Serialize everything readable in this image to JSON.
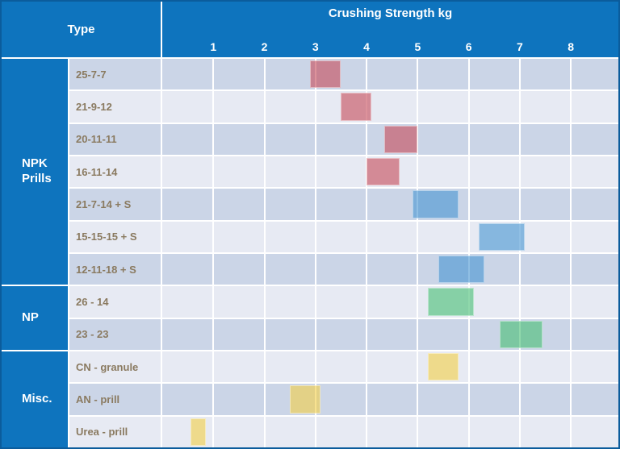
{
  "header": {
    "type_label": "Type",
    "title": "Crushing Strength kg",
    "ticks": [
      "1",
      "2",
      "3",
      "4",
      "5",
      "6",
      "7",
      "8"
    ]
  },
  "axis": {
    "x_max": 8.93
  },
  "colors": {
    "header_bg": "#0e74be",
    "border": "#0b5c9c",
    "row_dark": "#cbd5e7",
    "row_light": "#e7eaf3",
    "label_text": "#8a7a60",
    "gridline": "#ffffff",
    "bar_red": "rgba(198,74,88,0.6)",
    "bar_blue": "rgba(70,148,210,0.6)",
    "bar_green": "rgba(70,190,115,0.6)",
    "bar_yellow": "rgba(243,206,70,0.6)"
  },
  "groups": [
    {
      "label": "NPK Prills",
      "rows": 7
    },
    {
      "label": "NP",
      "rows": 2
    },
    {
      "label": "Misc.",
      "rows": 3
    }
  ],
  "rows": [
    {
      "label": "25-7-7",
      "start": 2.9,
      "end": 3.5,
      "color": "red"
    },
    {
      "label": "21-9-12",
      "start": 3.5,
      "end": 4.1,
      "color": "red"
    },
    {
      "label": "20-11-11",
      "start": 4.35,
      "end": 5.0,
      "color": "red"
    },
    {
      "label": "16-11-14",
      "start": 4.0,
      "end": 4.65,
      "color": "red"
    },
    {
      "label": "21-7-14 + S",
      "start": 4.9,
      "end": 5.8,
      "color": "blue"
    },
    {
      "label": "15-15-15 + S",
      "start": 6.2,
      "end": 7.1,
      "color": "blue"
    },
    {
      "label": "12-11-18 + S",
      "start": 5.4,
      "end": 6.3,
      "color": "blue"
    },
    {
      "label": "26 - 14",
      "start": 5.2,
      "end": 6.1,
      "color": "green"
    },
    {
      "label": "23 - 23",
      "start": 6.6,
      "end": 7.45,
      "color": "green"
    },
    {
      "label": "CN - granule",
      "start": 5.2,
      "end": 5.8,
      "color": "yellow"
    },
    {
      "label": "AN - prill",
      "start": 2.5,
      "end": 3.1,
      "color": "yellow"
    },
    {
      "label": "Urea - prill",
      "start": 0.55,
      "end": 0.85,
      "color": "yellow"
    }
  ],
  "chart_data": {
    "type": "bar",
    "subtype": "horizontal-range-gantt",
    "title": "Crushing Strength kg",
    "x_axis": {
      "label": "Crushing Strength kg",
      "ticks": [
        1,
        2,
        3,
        4,
        5,
        6,
        7,
        8
      ],
      "range": [
        0,
        8.93
      ],
      "grid": true
    },
    "y_axis": {
      "label": "Type"
    },
    "categories": [
      "25-7-7",
      "21-9-12",
      "20-11-11",
      "16-11-14",
      "21-7-14 + S",
      "15-15-15 + S",
      "12-11-18 + S",
      "26 - 14",
      "23 - 23",
      "CN - granule",
      "AN - prill",
      "Urea - prill"
    ],
    "category_groups": [
      "NPK Prills",
      "NPK Prills",
      "NPK Prills",
      "NPK Prills",
      "NPK Prills",
      "NPK Prills",
      "NPK Prills",
      "NP",
      "NP",
      "Misc.",
      "Misc.",
      "Misc."
    ],
    "ranges_kg": [
      [
        2.9,
        3.5
      ],
      [
        3.5,
        4.1
      ],
      [
        4.35,
        5.0
      ],
      [
        4.0,
        4.65
      ],
      [
        4.9,
        5.8
      ],
      [
        6.2,
        7.1
      ],
      [
        5.4,
        6.3
      ],
      [
        5.2,
        6.1
      ],
      [
        6.6,
        7.45
      ],
      [
        5.2,
        5.8
      ],
      [
        2.5,
        3.1
      ],
      [
        0.55,
        0.85
      ]
    ],
    "bar_color_names": [
      "red",
      "red",
      "red",
      "red",
      "blue",
      "blue",
      "blue",
      "green",
      "green",
      "yellow",
      "yellow",
      "yellow"
    ],
    "legend": "none",
    "row_shading": "alternating"
  }
}
